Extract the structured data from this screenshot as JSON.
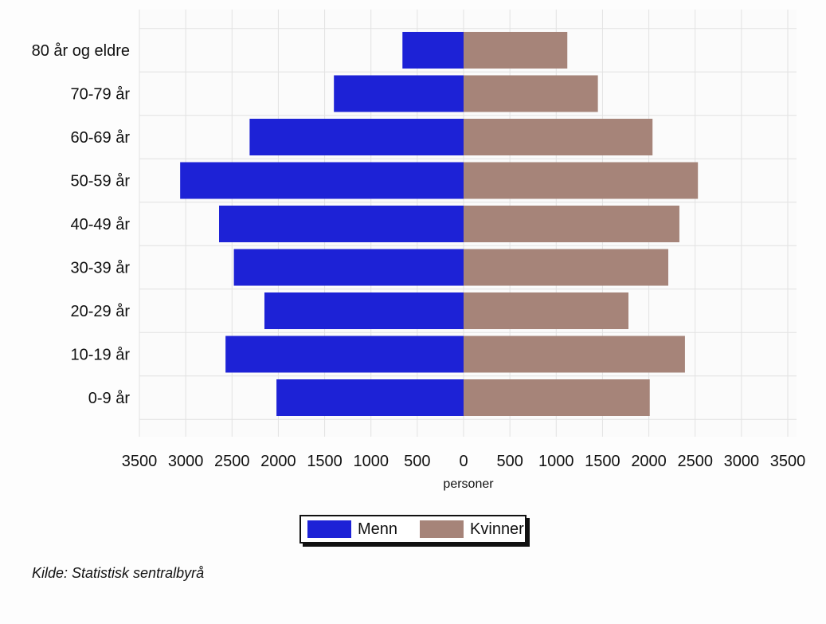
{
  "colors": {
    "men": "#1d22d6",
    "women": "#a68479",
    "grid": "#e2e2e2",
    "axis": "#555555"
  },
  "chart_data": {
    "type": "bar",
    "orientation": "horizontal",
    "layout": "population-pyramid",
    "categories": [
      "80 år og eldre",
      "70-79 år",
      "60-69 år",
      "50-59 år",
      "40-49 år",
      "30-39 år",
      "20-29 år",
      "10-19 år",
      "0-9 år"
    ],
    "series": [
      {
        "name": "Menn",
        "side": "left",
        "color": "#1d22d6",
        "values": [
          660,
          1400,
          2310,
          3060,
          2640,
          2480,
          2150,
          2570,
          2020
        ]
      },
      {
        "name": "Kvinner",
        "side": "right",
        "color": "#a68479",
        "values": [
          1120,
          1450,
          2040,
          2530,
          2330,
          2210,
          1780,
          2390,
          2010
        ]
      }
    ],
    "xlabel": "personer",
    "ylabel": "",
    "xlim": [
      -3500,
      3500
    ],
    "xticks": [
      -3500,
      -3000,
      -2500,
      -2000,
      -1500,
      -1000,
      -500,
      0,
      500,
      1000,
      1500,
      2000,
      2500,
      3000,
      3500
    ],
    "xtick_labels": [
      "3500",
      "3000",
      "2500",
      "2000",
      "1500",
      "1000",
      "500",
      "0",
      "500",
      "1000",
      "1500",
      "2000",
      "2500",
      "3000",
      "3500"
    ],
    "grid": true,
    "legend": {
      "placement": "bottom-center",
      "entries": [
        "Menn",
        "Kvinner"
      ]
    }
  },
  "source_note": "Kilde: Statistisk sentralbyrå"
}
